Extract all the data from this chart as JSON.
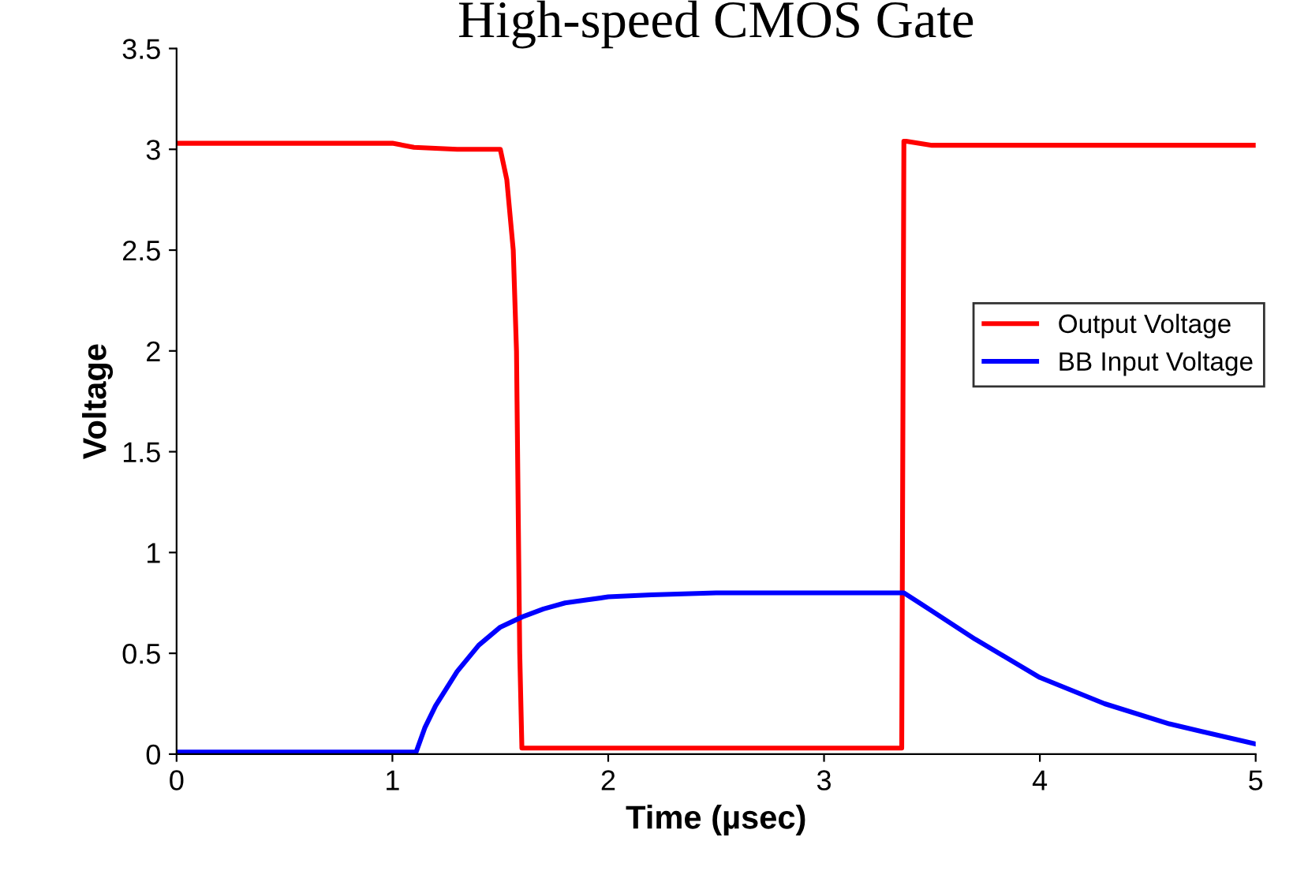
{
  "chart_data": {
    "type": "line",
    "title": "High-speed CMOS Gate",
    "xlabel": "Time (µsec)",
    "ylabel": "Voltage",
    "xlim": [
      0,
      5
    ],
    "xticks": [
      0,
      1,
      2,
      3,
      4,
      5
    ],
    "ylim": [
      0,
      3.5
    ],
    "yticks": [
      0,
      0.5,
      1,
      1.5,
      2,
      2.5,
      3,
      3.5
    ],
    "grid": false,
    "legend": "right",
    "marker": "none",
    "line_style": "solid",
    "series": [
      {
        "name": "Output Voltage",
        "color": "#ff0000",
        "x": [
          0,
          0.5,
          1.0,
          1.1,
          1.3,
          1.5,
          1.53,
          1.56,
          1.575,
          1.59,
          1.6,
          1.61,
          2.0,
          2.5,
          3.0,
          3.36,
          3.37,
          3.38,
          3.5,
          4.0,
          4.5,
          5.0
        ],
        "values": [
          3.03,
          3.03,
          3.03,
          3.01,
          3.0,
          3.0,
          2.85,
          2.5,
          2.0,
          0.5,
          0.03,
          0.03,
          0.03,
          0.03,
          0.03,
          0.03,
          3.04,
          3.04,
          3.02,
          3.02,
          3.02,
          3.02
        ]
      },
      {
        "name": "BB Input Voltage",
        "color": "#0000ff",
        "x": [
          0,
          0.5,
          1.0,
          1.11,
          1.15,
          1.2,
          1.3,
          1.4,
          1.5,
          1.6,
          1.7,
          1.8,
          2.0,
          2.2,
          2.5,
          3.0,
          3.37,
          3.5,
          3.7,
          4.0,
          4.3,
          4.6,
          5.0
        ],
        "values": [
          0.01,
          0.01,
          0.01,
          0.01,
          0.13,
          0.24,
          0.41,
          0.54,
          0.63,
          0.68,
          0.72,
          0.75,
          0.78,
          0.79,
          0.8,
          0.8,
          0.8,
          0.71,
          0.57,
          0.38,
          0.25,
          0.15,
          0.05
        ]
      }
    ]
  }
}
